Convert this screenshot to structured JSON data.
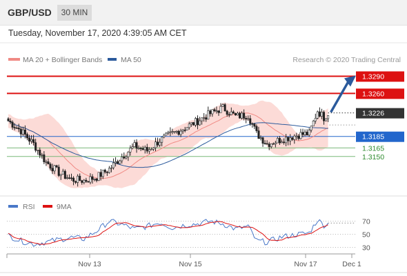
{
  "header": {
    "symbol": "GBP/USD",
    "timeframe": "30 MIN",
    "datetime": "Tuesday, November 17, 2020 4:39:05 AM CET"
  },
  "legend": {
    "bollinger_label": "MA 20 + Bollinger Bands",
    "bollinger_color": "#f08a84",
    "ma50_label": "MA 50",
    "ma50_color": "#2b5a9c",
    "credit": "Research © 2020 Trading Central"
  },
  "rsi_legend": {
    "rsi_label": "RSI",
    "rsi_color": "#4a78c8",
    "ma_label": "9MA",
    "ma_color": "#dd1111"
  },
  "colors": {
    "resistance": "#dd1111",
    "pivot": "#2266cc",
    "support": "#79b879",
    "current": "#333333",
    "arrow": "#2b5a9c",
    "band_fill": "#fbd5d0"
  },
  "chart_data": {
    "type": "candlestick",
    "price_range": [
      1.3098,
      1.3305
    ],
    "levels": [
      {
        "role": "resistance",
        "value": 1.329,
        "label": "1.3290"
      },
      {
        "role": "resistance",
        "value": 1.326,
        "label": "1.3260"
      },
      {
        "role": "current",
        "value": 1.3226,
        "label": "1.3226"
      },
      {
        "role": "pivot",
        "value": 1.3185,
        "label": "1.3185"
      },
      {
        "role": "support",
        "value": 1.3165,
        "label": "1.3165"
      },
      {
        "role": "support",
        "value": 1.315,
        "label": "1.3150"
      }
    ],
    "x_ticks": [
      "Nov 13",
      "Nov 15",
      "Nov 17",
      "Dec 1"
    ],
    "price_path_anchors": [
      [
        0,
        1.3212
      ],
      [
        6,
        1.3195
      ],
      [
        12,
        1.3172
      ],
      [
        18,
        1.314
      ],
      [
        24,
        1.3122
      ],
      [
        30,
        1.311
      ],
      [
        36,
        1.3108
      ],
      [
        42,
        1.3114
      ],
      [
        48,
        1.3128
      ],
      [
        54,
        1.315
      ],
      [
        60,
        1.3168
      ],
      [
        66,
        1.316
      ],
      [
        72,
        1.3178
      ],
      [
        78,
        1.319
      ],
      [
        84,
        1.32
      ],
      [
        90,
        1.3212
      ],
      [
        96,
        1.3225
      ],
      [
        102,
        1.3235
      ],
      [
        108,
        1.322
      ],
      [
        114,
        1.3222
      ],
      [
        118,
        1.319
      ],
      [
        123,
        1.3172
      ],
      [
        130,
        1.318
      ],
      [
        138,
        1.3188
      ],
      [
        143,
        1.319
      ],
      [
        147,
        1.323
      ],
      [
        150,
        1.3218
      ],
      [
        152,
        1.3226
      ]
    ],
    "rsi": {
      "y_ticks": [
        70,
        50,
        30
      ],
      "range": [
        20,
        80
      ],
      "anchors": [
        [
          0,
          48
        ],
        [
          6,
          40
        ],
        [
          12,
          35
        ],
        [
          18,
          38
        ],
        [
          24,
          42
        ],
        [
          30,
          45
        ],
        [
          36,
          43
        ],
        [
          42,
          55
        ],
        [
          48,
          70
        ],
        [
          54,
          65
        ],
        [
          60,
          58
        ],
        [
          66,
          62
        ],
        [
          72,
          68
        ],
        [
          78,
          60
        ],
        [
          84,
          64
        ],
        [
          90,
          66
        ],
        [
          96,
          70
        ],
        [
          102,
          66
        ],
        [
          108,
          58
        ],
        [
          114,
          62
        ],
        [
          118,
          40
        ],
        [
          123,
          38
        ],
        [
          130,
          46
        ],
        [
          138,
          50
        ],
        [
          143,
          52
        ],
        [
          147,
          72
        ],
        [
          150,
          64
        ],
        [
          152,
          66
        ]
      ]
    }
  }
}
